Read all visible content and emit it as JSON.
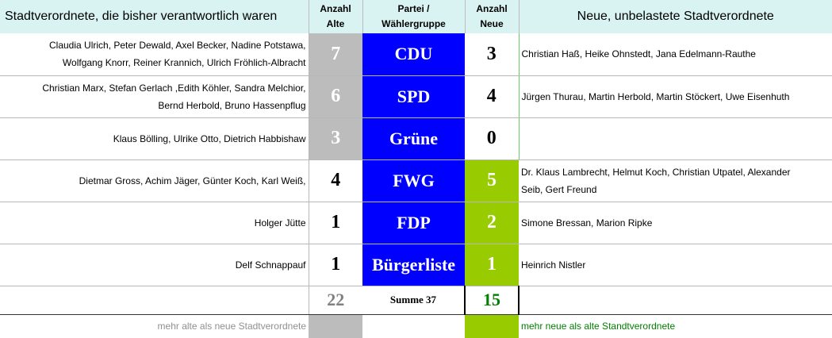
{
  "header": {
    "left": "Stadtverordnete, die bisher verantwortlich waren",
    "count_old": [
      "Anzahl",
      "Alte"
    ],
    "party": [
      "Partei /",
      "Wählergruppe"
    ],
    "count_new": [
      "Anzahl",
      "Neue"
    ],
    "right": "Neue, unbelastete Stadtverordnete"
  },
  "rows": [
    {
      "old_names": [
        "Claudia Ulrich, Peter Dewald,  Axel Becker, Nadine Potstawa,",
        "Wolfgang Knorr, Reiner Krannich, Ulrich Fröhlich-Albracht"
      ],
      "old": "7",
      "party": "CDU",
      "new": "3",
      "new_names": [
        "Christian Haß, Heike Ohnstedt, Jana Edelmann-Rauthe"
      ],
      "old_style": "gray",
      "new_style": "plain",
      "party_style": "blue"
    },
    {
      "old_names": [
        "Christian Marx, Stefan Gerlach ,Edith Köhler, Sandra Melchior,",
        "Bernd Herbold, Bruno Hassenpflug"
      ],
      "old": "6",
      "party": "SPD",
      "new": "4",
      "new_names": [
        "Jürgen Thurau, Martin Herbold, Martin Stöckert, Uwe Eisenhuth"
      ],
      "old_style": "gray",
      "new_style": "plain",
      "party_style": "blue"
    },
    {
      "old_names": [
        "Klaus Bölling, Ulrike Otto, Dietrich Habbishaw"
      ],
      "old": "3",
      "party": "Grüne",
      "new": "0",
      "new_names": [
        ""
      ],
      "old_style": "gray",
      "new_style": "plain",
      "party_style": "blue"
    },
    {
      "old_names": [
        "Dietmar Gross, Achim Jäger, Günter Koch, Karl Weiß,"
      ],
      "old": "4",
      "party": "FWG",
      "new": "5",
      "new_names": [
        "Dr. Klaus Lambrecht, Helmut Koch, Christian Utpatel, Alexander",
        "Seib, Gert Freund"
      ],
      "old_style": "plain",
      "new_style": "green",
      "party_style": "blue"
    },
    {
      "old_names": [
        "Holger Jütte"
      ],
      "old": "1",
      "party": "FDP",
      "new": "2",
      "new_names": [
        "Simone Bressan, Marion Ripke"
      ],
      "old_style": "plain",
      "new_style": "green",
      "party_style": "blue"
    },
    {
      "old_names": [
        "Delf Schnappauf"
      ],
      "old": "1",
      "party": "Bürgerliste",
      "new": "1",
      "new_names": [
        "Heinrich Nistler"
      ],
      "old_style": "plain",
      "new_style": "green",
      "party_style": "blue"
    }
  ],
  "sum": {
    "old": "22",
    "label": "Summe 37",
    "new": "15"
  },
  "legend": {
    "old": "mehr alte als neue Stadtverordnete",
    "new": "mehr neue als alte Standtverordnete"
  },
  "colors": {
    "gray": "#bcbcbc",
    "blue": "#0000ff",
    "green": "#99cc00",
    "header_bg": "#d9f3f3",
    "sum_green": "#008000"
  }
}
